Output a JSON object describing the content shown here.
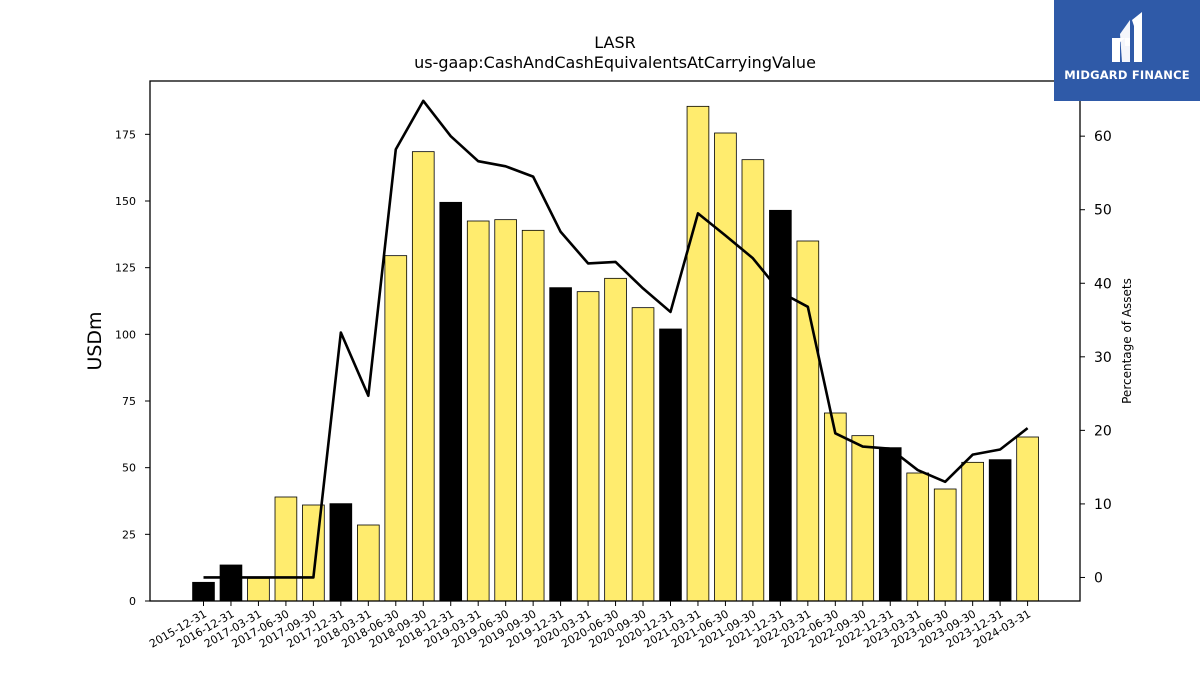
{
  "chart_data": {
    "type": "bar",
    "title": "LASR",
    "subtitle": "us-gaap:CashAndCashEquivalentsAtCarryingValue",
    "ylabel": "USDm",
    "y2label": "Percentage of Assets",
    "ylim": [
      0,
      195
    ],
    "y2lim": [
      -3.2,
      67.5
    ],
    "yticks": [
      0,
      25,
      50,
      75,
      100,
      125,
      150,
      175
    ],
    "y2ticks": [
      0,
      10,
      20,
      30,
      40,
      50,
      60
    ],
    "categories": [
      "2015-12-31",
      "2016-12-31",
      "2017-03-31",
      "2017-06-30",
      "2017-09-30",
      "2017-12-31",
      "2018-03-31",
      "2018-06-30",
      "2018-09-30",
      "2018-12-31",
      "2019-03-31",
      "2019-06-30",
      "2019-09-30",
      "2019-12-31",
      "2020-03-31",
      "2020-06-30",
      "2020-09-30",
      "2020-12-31",
      "2021-03-31",
      "2021-06-30",
      "2021-09-30",
      "2021-12-31",
      "2022-03-31",
      "2022-06-30",
      "2022-09-30",
      "2022-12-31",
      "2023-03-31",
      "2023-06-30",
      "2023-09-30",
      "2023-12-31",
      "2024-03-31"
    ],
    "series": [
      {
        "type": "bar",
        "values": [
          7,
          13.5,
          8.5,
          39,
          36,
          36.5,
          28.5,
          129.5,
          168.5,
          149.5,
          142.5,
          143,
          139,
          117.5,
          116,
          121,
          110,
          102,
          185.5,
          175.5,
          165.5,
          146.5,
          135,
          70.5,
          62,
          57.5,
          48,
          42,
          52,
          53,
          61.5
        ],
        "colors": [
          "#000000",
          "#000000",
          "#ffec6e",
          "#ffec6e",
          "#ffec6e",
          "#000000",
          "#ffec6e",
          "#ffec6e",
          "#ffec6e",
          "#000000",
          "#ffec6e",
          "#ffec6e",
          "#ffec6e",
          "#000000",
          "#ffec6e",
          "#ffec6e",
          "#ffec6e",
          "#000000",
          "#ffec6e",
          "#ffec6e",
          "#ffec6e",
          "#000000",
          "#ffec6e",
          "#ffec6e",
          "#ffec6e",
          "#000000",
          "#ffec6e",
          "#ffec6e",
          "#ffec6e",
          "#000000",
          "#ffec6e"
        ]
      },
      {
        "type": "line",
        "axis": "right",
        "values": [
          0,
          0,
          0,
          0,
          0,
          33.3,
          24.7,
          58.2,
          64.8,
          60.0,
          56.6,
          55.9,
          54.5,
          47.0,
          42.7,
          42.9,
          39.3,
          36.1,
          49.5,
          46.5,
          43.4,
          38.8,
          36.8,
          19.6,
          17.8,
          17.5,
          14.6,
          13.0,
          16.7,
          17.4,
          20.3
        ]
      }
    ],
    "colors": {
      "annual": "#000000",
      "quarterly": "#ffec6e",
      "line": "#000000"
    }
  },
  "logo": {
    "text": "MIDGARD FINANCE"
  }
}
